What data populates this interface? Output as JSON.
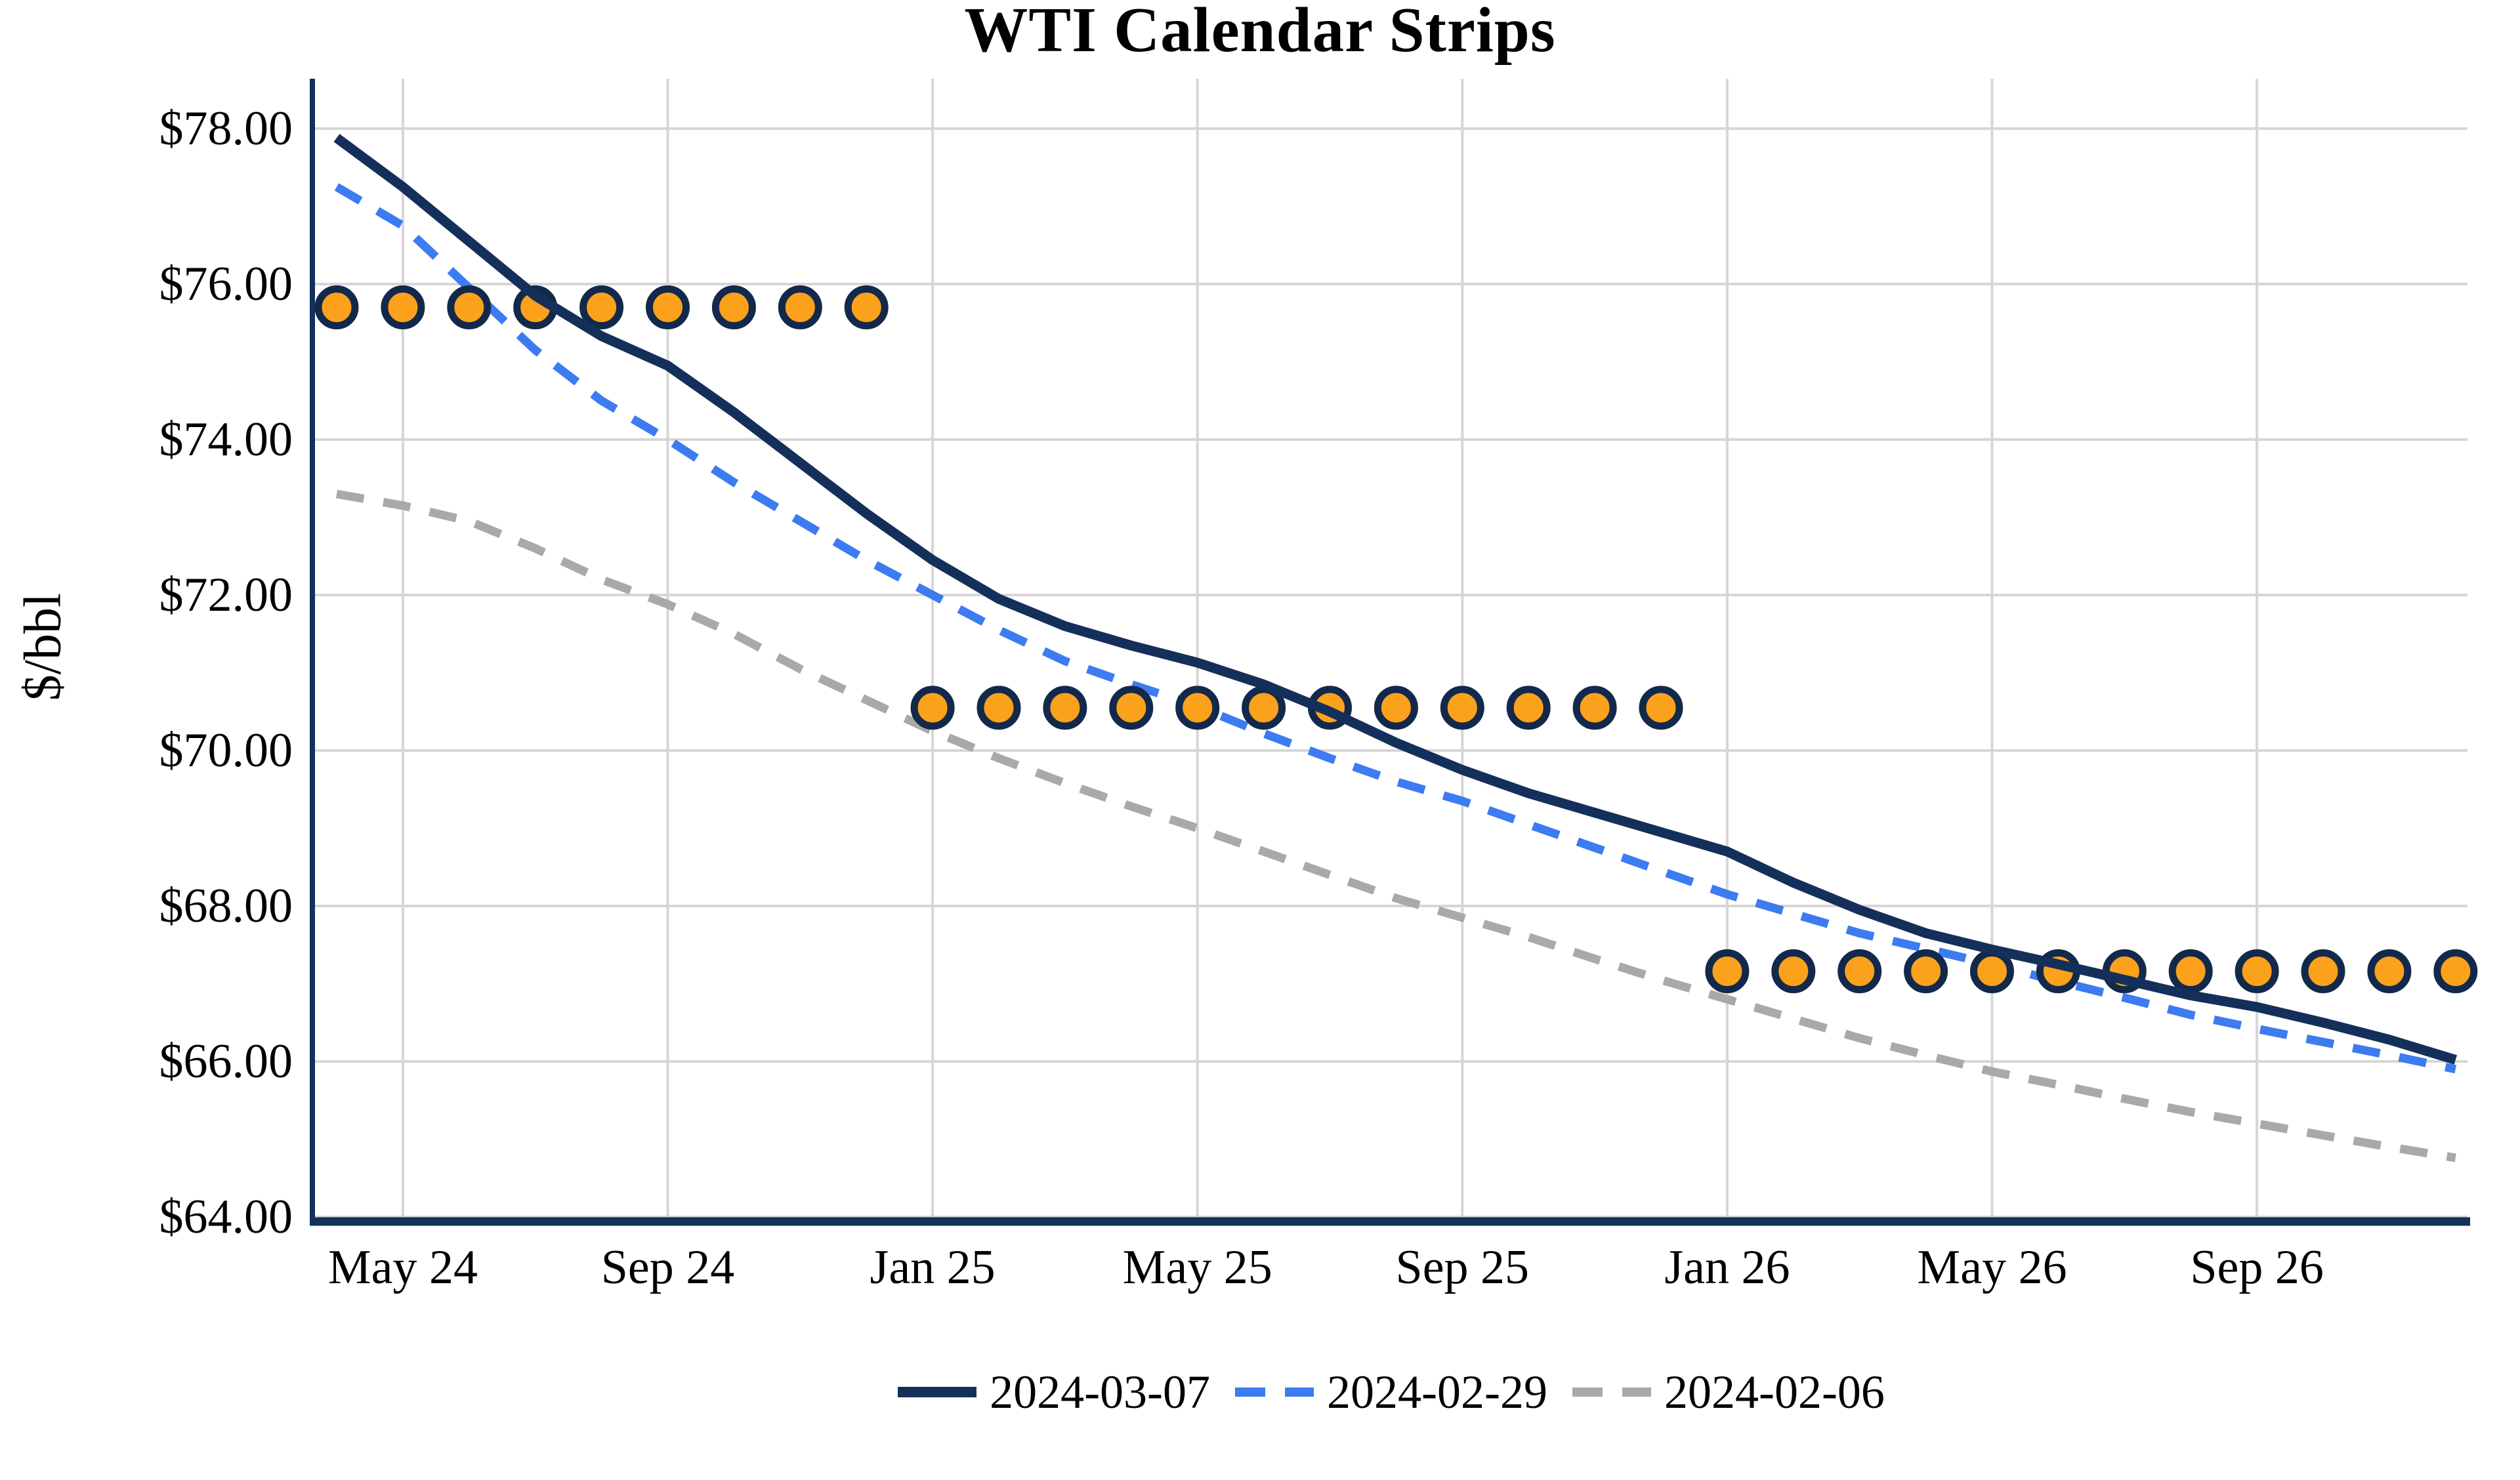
{
  "title": "WTI Calendar Strips",
  "y_axis": {
    "label": "$/bbl",
    "tick_values": [
      78,
      76,
      74,
      72,
      70,
      68,
      66,
      64
    ],
    "tick_labels": [
      "$78.00",
      "$76.00",
      "$74.00",
      "$72.00",
      "$70.00",
      "$68.00",
      "$66.00",
      "$64.00"
    ]
  },
  "x_axis": {
    "tick_labels": [
      "May 24",
      "Sep 24",
      "Jan 25",
      "May 25",
      "Sep 25",
      "Jan 26",
      "May 26",
      "Sep 26"
    ],
    "tick_month_indices": [
      1,
      5,
      9,
      13,
      17,
      21,
      25,
      29
    ]
  },
  "legend": [
    {
      "label": "2024-03-07",
      "color": "#14305A",
      "style": "solid"
    },
    {
      "label": "2024-02-29",
      "color": "#3D7BF0",
      "style": "dashed"
    },
    {
      "label": "2024-02-06",
      "color": "#A9A9A9",
      "style": "dashed"
    }
  ],
  "colors": {
    "axis": "#14305A",
    "gridline": "#D6D6D6",
    "marker_fill": "#FBA11C",
    "marker_edge": "#12294B",
    "text": "#000000"
  },
  "chart_data": {
    "type": "line",
    "x_months": [
      "Apr 24",
      "May 24",
      "Jun 24",
      "Jul 24",
      "Aug 24",
      "Sep 24",
      "Oct 24",
      "Nov 24",
      "Dec 24",
      "Jan 25",
      "Feb 25",
      "Mar 25",
      "Apr 25",
      "May 25",
      "Jun 25",
      "Jul 25",
      "Aug 25",
      "Sep 25",
      "Oct 25",
      "Nov 25",
      "Dec 25",
      "Jan 26",
      "Feb 26",
      "Mar 26",
      "Apr 26",
      "May 26",
      "Jun 26",
      "Jul 26",
      "Aug 26",
      "Sep 26",
      "Oct 26",
      "Nov 26",
      "Dec 26"
    ],
    "ylim": [
      64,
      78
    ],
    "ylabel": "$/bbl",
    "grid": true,
    "legend_position": "bottom-center",
    "series": [
      {
        "name": "2024-03-07",
        "style": "solid",
        "color": "#14305A",
        "width": 15,
        "values": [
          77.88,
          77.25,
          76.55,
          75.85,
          75.33,
          74.95,
          74.35,
          73.7,
          73.05,
          72.45,
          71.95,
          71.6,
          71.35,
          71.13,
          70.85,
          70.5,
          70.1,
          69.75,
          69.45,
          69.2,
          68.95,
          68.7,
          68.3,
          67.95,
          67.65,
          67.44,
          67.25,
          67.05,
          66.85,
          66.7,
          66.5,
          66.28,
          66.02
        ]
      },
      {
        "name": "2024-02-29",
        "style": "dashed",
        "color": "#3D7BF0",
        "width": 13,
        "values": [
          77.25,
          76.75,
          75.95,
          75.15,
          74.5,
          74.0,
          73.45,
          72.95,
          72.45,
          72.0,
          71.55,
          71.15,
          70.85,
          70.57,
          70.22,
          69.9,
          69.6,
          69.35,
          69.05,
          68.75,
          68.45,
          68.15,
          67.9,
          67.65,
          67.45,
          67.25,
          67.03,
          66.82,
          66.6,
          66.42,
          66.25,
          66.08,
          65.9
        ]
      },
      {
        "name": "2024-02-06",
        "style": "dashed",
        "color": "#A9A9A9",
        "width": 13,
        "values": [
          73.3,
          73.15,
          72.95,
          72.6,
          72.2,
          71.88,
          71.5,
          71.05,
          70.65,
          70.25,
          69.9,
          69.58,
          69.28,
          69.0,
          68.7,
          68.4,
          68.1,
          67.85,
          67.6,
          67.32,
          67.05,
          66.8,
          66.55,
          66.3,
          66.08,
          65.87,
          65.7,
          65.52,
          65.35,
          65.2,
          65.05,
          64.9,
          64.76
        ]
      }
    ],
    "calendar_strips": [
      {
        "year": "2024",
        "value": 75.7,
        "month_start": 0,
        "month_end": 8
      },
      {
        "year": "2025",
        "value": 70.55,
        "month_start": 9,
        "month_end": 20
      },
      {
        "year": "2026",
        "value": 67.16,
        "month_start": 21,
        "month_end": 32
      }
    ],
    "marker": {
      "shape": "circle",
      "fill": "#FBA11C",
      "edge": "#12294B",
      "radius": 28,
      "edge_width": 11
    }
  }
}
